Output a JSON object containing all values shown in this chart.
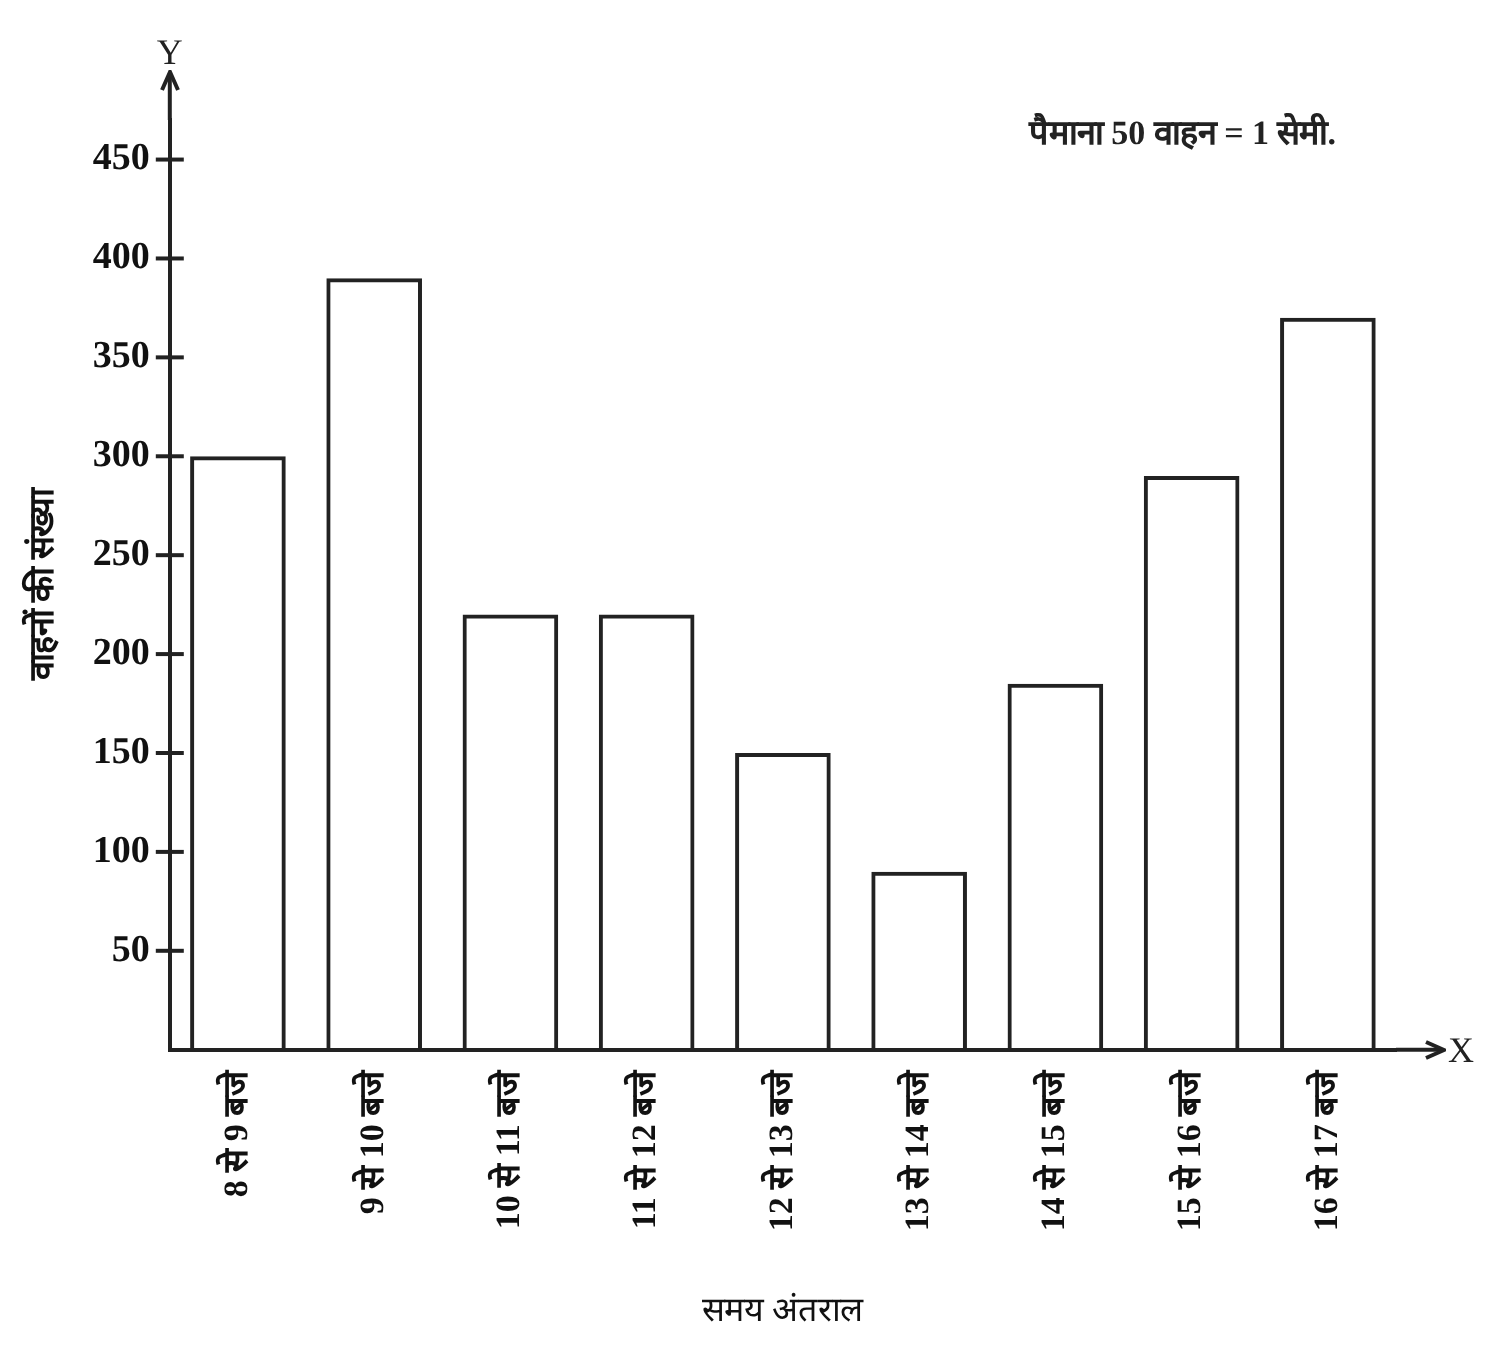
{
  "chart_data": {
    "type": "bar",
    "xlabel": "समय अंतराल",
    "ylabel": "वाहनों की संख्या",
    "categories": [
      "8 से 9 बजे",
      "9 से 10 बजे",
      "10 से 11 बजे",
      "11 से 12 बजे",
      "12 से 13 बजे",
      "13 से 14 बजे",
      "14 से 15 बजे",
      "15 से 16 बजे",
      "16 से 17 बजे"
    ],
    "values": [
      300,
      390,
      220,
      220,
      150,
      90,
      185,
      290,
      370
    ],
    "color": "#222222",
    "ylim": [
      0,
      470
    ],
    "yticks": [
      50,
      100,
      150,
      200,
      250,
      300,
      350,
      400,
      450
    ],
    "grid": false,
    "legend": false,
    "annotations": [
      "पैमाना 50 वाहन = 1 सेमी.",
      "Y",
      "X"
    ]
  }
}
